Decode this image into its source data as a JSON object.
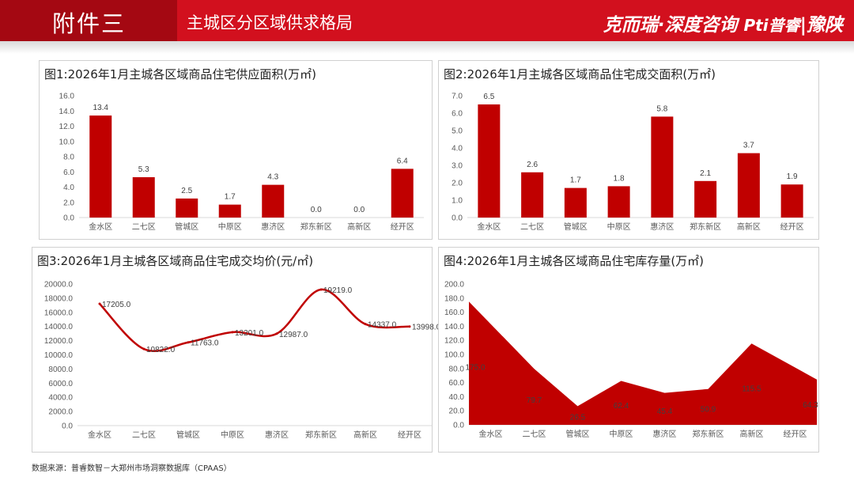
{
  "header": {
    "title": "附件三",
    "subtitle": "主城区分区域供求格局",
    "logo": "克而瑞·深度咨询 | Pti普睿 | 豫陕"
  },
  "watermark": "克而瑞·深度咨询 Pti普睿 豫陕",
  "source": "数据来源：普睿数智－大郑州市场洞察数据库（CPAAS）",
  "colors": {
    "header_red": "#d2101e",
    "header_dark": "#a40812",
    "bar": "#c00000",
    "line": "#c00000",
    "area": "#c00000"
  },
  "chart_data": [
    {
      "type": "bar",
      "title": "图1:2026年1月主城各区域商品住宅供应面积(万㎡)",
      "categories": [
        "金水区",
        "二七区",
        "管城区",
        "中原区",
        "惠济区",
        "郑东新区",
        "高新区",
        "经开区"
      ],
      "values": [
        13.4,
        5.3,
        2.5,
        1.7,
        4.3,
        0.0,
        0.0,
        6.4
      ],
      "labels": [
        "13.4",
        "5.3",
        "2.5",
        "1.7",
        "4.3",
        "0.0",
        "0.0",
        "6.4"
      ],
      "ylim": [
        0,
        16
      ],
      "yticks": [
        0,
        2,
        4,
        6,
        8,
        10,
        12,
        14,
        16
      ],
      "tick_labels": [
        "0.0",
        "2.0",
        "4.0",
        "6.0",
        "8.0",
        "10.0",
        "12.0",
        "14.0",
        "16.0"
      ],
      "grid": false
    },
    {
      "type": "bar",
      "title": "图2:2026年1月主城各区域商品住宅成交面积(万㎡)",
      "categories": [
        "金水区",
        "二七区",
        "管城区",
        "中原区",
        "惠济区",
        "郑东新区",
        "高新区",
        "经开区"
      ],
      "values": [
        6.5,
        2.6,
        1.7,
        1.8,
        5.8,
        2.1,
        3.7,
        1.9
      ],
      "labels": [
        "6.5",
        "2.6",
        "1.7",
        "1.8",
        "5.8",
        "2.1",
        "3.7",
        "1.9"
      ],
      "ylim": [
        0,
        7
      ],
      "yticks": [
        0,
        1,
        2,
        3,
        4,
        5,
        6,
        7
      ],
      "tick_labels": [
        "0.0",
        "1.0",
        "2.0",
        "3.0",
        "4.0",
        "5.0",
        "6.0",
        "7.0"
      ],
      "grid": false
    },
    {
      "type": "line",
      "title": "图3:2026年1月主城各区域商品住宅成交均价(元/㎡)",
      "categories": [
        "金水区",
        "二七区",
        "管城区",
        "中原区",
        "惠济区",
        "郑东新区",
        "高新区",
        "经开区"
      ],
      "values": [
        17205.0,
        10822.0,
        11763.0,
        13201.0,
        12987.0,
        19219.0,
        14337.0,
        13998.0
      ],
      "labels": [
        "17205.0",
        "10822.0",
        "11763.0",
        "13201.0",
        "12987.0",
        "19219.0",
        "14337.0",
        "13998.0"
      ],
      "ylim": [
        0,
        20000
      ],
      "yticks": [
        0,
        2000,
        4000,
        6000,
        8000,
        10000,
        12000,
        14000,
        16000,
        18000,
        20000
      ],
      "tick_labels": [
        "0.0",
        "2000.0",
        "4000.0",
        "6000.0",
        "8000.0",
        "10000.0",
        "12000.0",
        "14000.0",
        "16000.0",
        "18000.0",
        "20000.0"
      ],
      "smooth": true,
      "grid": false
    },
    {
      "type": "area",
      "title": "图4:2026年1月主城各区域商品住宅库存量(万㎡)",
      "categories": [
        "金水区",
        "二七区",
        "管城区",
        "中原区",
        "惠济区",
        "郑东新区",
        "高新区",
        "经开区"
      ],
      "values": [
        175.0,
        79.7,
        26.5,
        62.4,
        45.4,
        50.9,
        115.5,
        64.3
      ],
      "labels": [
        "175.0",
        "79.7",
        "26.5",
        "62.4",
        "45.4",
        "50.9",
        "115.5",
        "64.3"
      ],
      "ylim": [
        0,
        200
      ],
      "yticks": [
        0,
        20,
        40,
        60,
        80,
        100,
        120,
        140,
        160,
        180,
        200
      ],
      "tick_labels": [
        "0.0",
        "20.0",
        "40.0",
        "60.0",
        "80.0",
        "100.0",
        "120.0",
        "140.0",
        "160.0",
        "180.0",
        "200.0"
      ],
      "grid": false
    }
  ]
}
